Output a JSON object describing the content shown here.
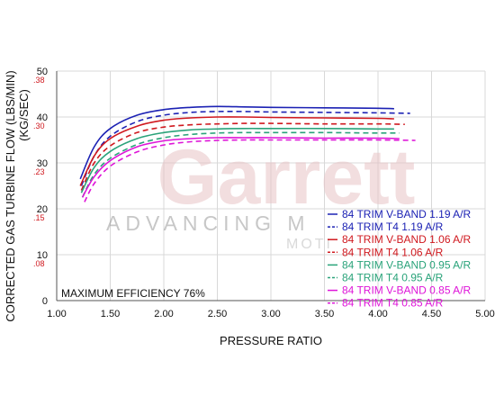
{
  "chart_data": {
    "type": "line",
    "xlabel": "PRESSURE RATIO",
    "ylabel_primary": "CORRECTED GAS TURBINE FLOW (LBS/MIN)",
    "ylabel_secondary": "(KG/SEC)",
    "xlim": [
      1.0,
      5.0
    ],
    "ylim": [
      0,
      50
    ],
    "x_ticks": [
      "1.00",
      "1.50",
      "2.00",
      "2.50",
      "3.00",
      "3.50",
      "4.00",
      "4.50",
      "5.00"
    ],
    "y_ticks": [
      "0",
      "10",
      "20",
      "30",
      "40",
      "50"
    ],
    "y_ticks_secondary": [
      ".08",
      ".15",
      ".23",
      ".30",
      ".38"
    ],
    "annotation": "MAXIMUM EFFICIENCY 76%",
    "watermark": {
      "brand": "Garrett",
      "tagline": "ADVANCING M",
      "sub": "MOTI"
    },
    "legend_position": "bottom-right",
    "grid": true,
    "series": [
      {
        "name": "84 TRIM V-BAND 1.19 A/R",
        "color": "#1c22b4",
        "dash": "solid",
        "x": [
          1.22,
          1.35,
          1.5,
          1.75,
          2.0,
          2.25,
          2.5,
          2.75,
          3.0,
          3.5,
          4.0,
          4.15
        ],
        "y": [
          26.5,
          33.5,
          37.5,
          40.4,
          41.6,
          42.1,
          42.3,
          42.2,
          42.1,
          42.0,
          41.9,
          41.8
        ]
      },
      {
        "name": "84 TRIM T4 1.19 A/R",
        "color": "#1c22b4",
        "dash": "dashed",
        "x": [
          1.23,
          1.35,
          1.5,
          1.75,
          2.0,
          2.25,
          2.5,
          2.75,
          3.0,
          3.5,
          4.0,
          4.3
        ],
        "y": [
          25.0,
          31.5,
          35.8,
          39.0,
          40.4,
          41.0,
          41.2,
          41.2,
          41.1,
          41.0,
          40.9,
          40.8
        ]
      },
      {
        "name": "84 TRIM V-BAND 1.06 A/R",
        "color": "#d0191f",
        "dash": "solid",
        "x": [
          1.22,
          1.35,
          1.5,
          1.75,
          2.0,
          2.25,
          2.5,
          2.75,
          3.0,
          3.5,
          4.0,
          4.15
        ],
        "y": [
          25.0,
          31.5,
          35.3,
          38.0,
          39.3,
          39.8,
          40.0,
          40.0,
          39.9,
          39.8,
          39.7,
          39.6
        ]
      },
      {
        "name": "84 TRIM T4 1.06 A/R",
        "color": "#d0191f",
        "dash": "dashed",
        "x": [
          1.23,
          1.35,
          1.5,
          1.75,
          2.0,
          2.25,
          2.5,
          2.75,
          3.0,
          3.5,
          4.0,
          4.25
        ],
        "y": [
          24.0,
          30.0,
          33.7,
          36.6,
          37.8,
          38.3,
          38.5,
          38.6,
          38.6,
          38.5,
          38.5,
          38.4
        ]
      },
      {
        "name": "84 TRIM V-BAND 0.95 A/R",
        "color": "#2aa37a",
        "dash": "solid",
        "x": [
          1.23,
          1.35,
          1.5,
          1.75,
          2.0,
          2.25,
          2.5,
          2.75,
          3.0,
          3.5,
          4.0,
          4.15
        ],
        "y": [
          23.5,
          29.0,
          32.5,
          35.3,
          36.6,
          37.2,
          37.4,
          37.5,
          37.5,
          37.5,
          37.4,
          37.4
        ]
      },
      {
        "name": "84 TRIM T4 0.95 A/R",
        "color": "#2aa37a",
        "dash": "dashed",
        "x": [
          1.24,
          1.35,
          1.5,
          1.75,
          2.0,
          2.25,
          2.5,
          2.75,
          3.0,
          3.5,
          4.0,
          4.2
        ],
        "y": [
          22.5,
          27.5,
          31.0,
          34.0,
          35.5,
          36.2,
          36.5,
          36.6,
          36.6,
          36.6,
          36.5,
          36.5
        ]
      },
      {
        "name": "84 TRIM V-BAND 0.85 A/R",
        "color": "#de14d8",
        "dash": "solid",
        "x": [
          1.24,
          1.35,
          1.5,
          1.75,
          2.0,
          2.25,
          2.5,
          2.75,
          3.0,
          3.5,
          4.0,
          4.2
        ],
        "y": [
          22.5,
          27.0,
          30.5,
          33.5,
          34.8,
          35.3,
          35.5,
          35.5,
          35.5,
          35.4,
          35.4,
          35.3
        ]
      },
      {
        "name": "84 TRIM T4 0.85 A/R",
        "color": "#de14d8",
        "dash": "dashed",
        "x": [
          1.26,
          1.35,
          1.5,
          1.75,
          2.0,
          2.25,
          2.5,
          2.75,
          3.0,
          3.5,
          4.0,
          4.35
        ],
        "y": [
          21.5,
          25.5,
          29.3,
          32.4,
          33.9,
          34.6,
          34.9,
          35.0,
          35.0,
          35.0,
          35.0,
          34.9
        ]
      }
    ]
  }
}
